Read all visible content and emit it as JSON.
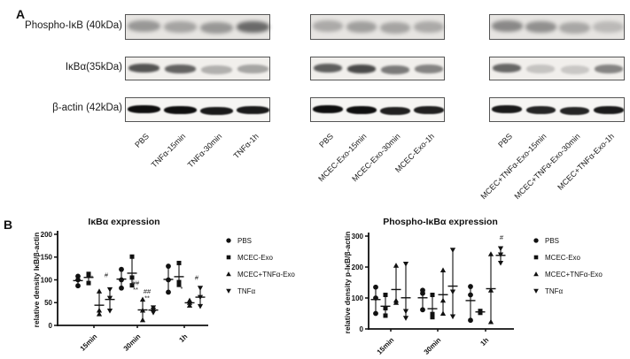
{
  "panel_a": {
    "label": "A",
    "row_labels": [
      "Phospho-IκB (40kDa)",
      "IκBα(35kDa)",
      "β-actin (42kDa)"
    ],
    "groups": [
      {
        "lanes": [
          "PBS",
          "TNFα-15min",
          "TNFα-30min",
          "TNFα-1h"
        ],
        "band_intensities": [
          [
            0.5,
            0.42,
            0.5,
            0.8
          ],
          [
            0.8,
            0.72,
            0.32,
            0.38
          ],
          [
            1.0,
            1.0,
            0.95,
            0.95
          ]
        ]
      },
      {
        "lanes": [
          "PBS",
          "MCEC-Exo-15min",
          "MCEC-Exo-30min",
          "MCEC-Exo-1h"
        ],
        "band_intensities": [
          [
            0.38,
            0.45,
            0.42,
            0.38
          ],
          [
            0.75,
            0.85,
            0.6,
            0.55
          ],
          [
            1.0,
            1.0,
            0.92,
            0.92
          ]
        ]
      },
      {
        "lanes": [
          "PBS",
          "MCEC+TNFα-Exo-15min",
          "MCEC+TNFα-Exo-30min",
          "MCEC+TNFα-Exo-1h"
        ],
        "band_intensities": [
          [
            0.6,
            0.55,
            0.4,
            0.28
          ],
          [
            0.7,
            0.22,
            0.2,
            0.55
          ],
          [
            0.95,
            0.9,
            0.9,
            0.95
          ]
        ]
      }
    ]
  },
  "panel_b": {
    "label": "B"
  },
  "chart_data": [
    {
      "type": "scatter",
      "title": "IκBα expression",
      "ylabel": "relative density IκB/β-actin",
      "ylim": [
        0,
        200
      ],
      "yticks": [
        0,
        50,
        100,
        150,
        200
      ],
      "categories": [
        "15min",
        "30min",
        "1h"
      ],
      "legend_position": "right",
      "grid": false,
      "series": [
        {
          "name": "PBS",
          "marker": "circle",
          "values": [
            [
              108,
              100,
              87
            ],
            [
              123,
              100,
              82
            ],
            [
              130,
              100,
              73
            ]
          ]
        },
        {
          "name": "MCEC-Exo",
          "marker": "square",
          "values": [
            [
              113,
              110,
              93
            ],
            [
              151,
              105,
              88
            ],
            [
              137,
              95,
              89
            ]
          ]
        },
        {
          "name": "MCEC+TNFα-Exo",
          "marker": "triangle-up",
          "values": [
            [
              75,
              33,
              25
            ],
            [
              57,
              33,
              12
            ],
            [
              55,
              50,
              44
            ]
          ]
        },
        {
          "name": "TNFα",
          "marker": "triangle-down",
          "values": [
            [
              79,
              60,
              32
            ],
            [
              39,
              34,
              28
            ],
            [
              82,
              62,
              42
            ]
          ]
        }
      ],
      "annotations": [
        {
          "group": 0,
          "series": 2,
          "text": "*",
          "y": 100,
          "dx": -8
        },
        {
          "group": 0,
          "series": 3,
          "text": "#",
          "y": 106,
          "dx": -4
        },
        {
          "group": 1,
          "series": 2,
          "text": "##",
          "y": 88,
          "dx": -8
        },
        {
          "group": 1,
          "series": 2,
          "text": "**",
          "y": 74,
          "dx": -8
        },
        {
          "group": 1,
          "series": 3,
          "text": "##",
          "y": 70,
          "dx": -7
        },
        {
          "group": 1,
          "series": 3,
          "text": "**",
          "y": 55,
          "dx": -7
        },
        {
          "group": 2,
          "series": 2,
          "text": "*",
          "y": 76,
          "dx": -9
        },
        {
          "group": 2,
          "series": 3,
          "text": "#",
          "y": 100,
          "dx": -4
        }
      ]
    },
    {
      "type": "scatter",
      "title": "Phospho-IκBα expression",
      "ylabel": "relative density p-IκB/β-actin",
      "ylim": [
        0,
        300
      ],
      "yticks": [
        0,
        100,
        200,
        300
      ],
      "categories": [
        "15min",
        "30min",
        "1h"
      ],
      "legend_position": "right",
      "grid": false,
      "series": [
        {
          "name": "PBS",
          "marker": "circle",
          "values": [
            [
              135,
              100,
              50
            ],
            [
              125,
              115,
              62
            ],
            [
              137,
              110,
              28
            ]
          ]
        },
        {
          "name": "MCEC-Exo",
          "marker": "square",
          "values": [
            [
              110,
              67,
              43
            ],
            [
              110,
              48,
              38
            ],
            [
              58,
              55,
              52
            ]
          ]
        },
        {
          "name": "MCEC+TNFα-Exo",
          "marker": "triangle-up",
          "values": [
            [
              205,
              92,
              85
            ],
            [
              190,
              92,
              50
            ],
            [
              242,
              125,
              23
            ]
          ]
        },
        {
          "name": "TNFα",
          "marker": "triangle-down",
          "values": [
            [
              210,
              57,
              35
            ],
            [
              255,
              120,
              40
            ],
            [
              260,
              240,
              213
            ]
          ]
        }
      ],
      "annotations": [
        {
          "group": 2,
          "series": 3,
          "text": "#",
          "y": 288,
          "dx": 1
        }
      ]
    }
  ]
}
